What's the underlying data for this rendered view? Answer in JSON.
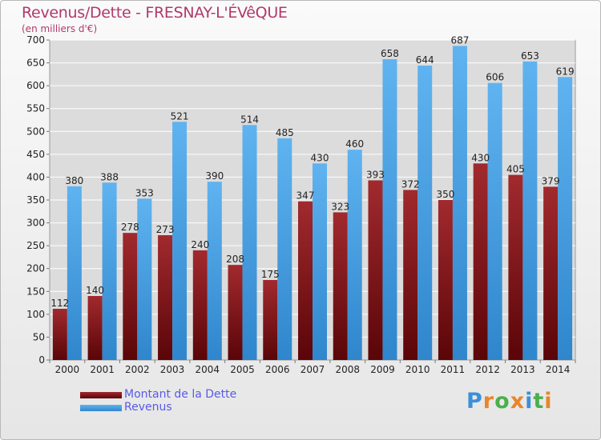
{
  "header": {
    "title": "Revenus/Dette - FRESNAY-L'ÉVêQUE",
    "subtitle": "(en milliers d'€)"
  },
  "chart_data": {
    "type": "bar",
    "categories": [
      "2000",
      "2001",
      "2002",
      "2003",
      "2004",
      "2005",
      "2006",
      "2007",
      "2008",
      "2009",
      "2010",
      "2011",
      "2012",
      "2013",
      "2014"
    ],
    "series": [
      {
        "name": "Montant de la Dette",
        "color": "#7a0f14",
        "values": [
          112,
          140,
          278,
          273,
          240,
          208,
          175,
          347,
          323,
          393,
          372,
          350,
          430,
          405,
          379
        ]
      },
      {
        "name": "Revenus",
        "color": "#4aa3e6",
        "values": [
          380,
          388,
          353,
          521,
          390,
          514,
          485,
          430,
          460,
          658,
          644,
          687,
          606,
          653,
          619
        ]
      }
    ],
    "ylim": [
      0,
      700
    ],
    "yticks": [
      0,
      50,
      100,
      150,
      200,
      250,
      300,
      350,
      400,
      450,
      500,
      550,
      600,
      650,
      700
    ],
    "grid": true,
    "legend_position": "bottom-left"
  },
  "legend": {
    "items": [
      {
        "label": "Montant de la Dette",
        "color": "#7a0f14"
      },
      {
        "label": "Revenus",
        "color": "#4aa3e6"
      }
    ]
  },
  "logo": {
    "letters": [
      "P",
      "r",
      "o",
      "x",
      "i",
      "t",
      "i"
    ],
    "colors": [
      "#3c8fd8",
      "#e8862a",
      "#4ab04a",
      "#e8862a",
      "#3c8fd8",
      "#4ab04a",
      "#e8862a"
    ]
  }
}
